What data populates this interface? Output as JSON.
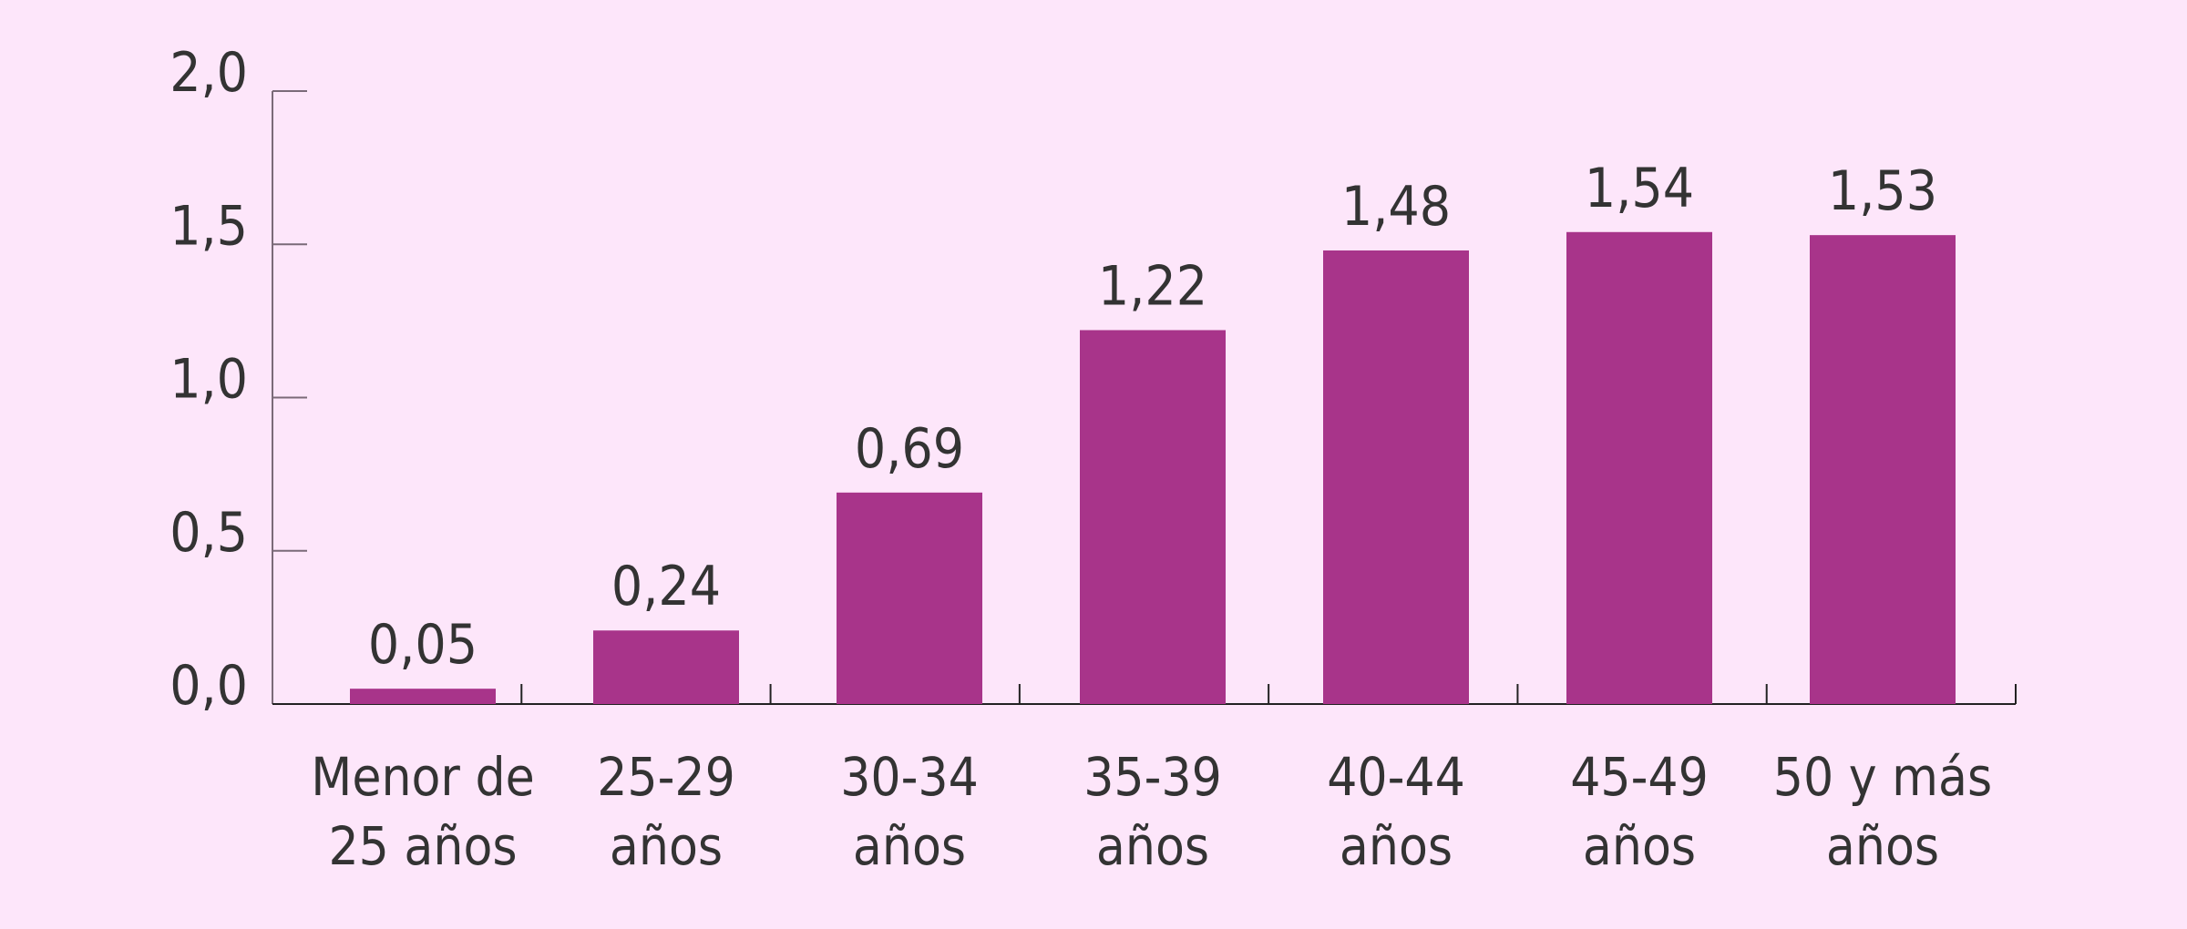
{
  "chart_data": {
    "type": "bar",
    "categories": [
      [
        "Menor de",
        "25 años"
      ],
      [
        "25-29",
        "años"
      ],
      [
        "30-34",
        "años"
      ],
      [
        "35-39",
        "años"
      ],
      [
        "40-44",
        "años"
      ],
      [
        "45-49",
        "años"
      ],
      [
        "50 y más",
        "años"
      ]
    ],
    "values": [
      0.05,
      0.24,
      0.69,
      1.22,
      1.48,
      1.54,
      1.53
    ],
    "value_labels": [
      "0,05",
      "0,24",
      "0,69",
      "1,22",
      "1,48",
      "1,54",
      "1,53"
    ],
    "title": "",
    "xlabel": "",
    "ylabel": "",
    "ylim": [
      0,
      2.0
    ],
    "yticks": [
      0,
      0.5,
      1.0,
      1.5,
      2.0
    ],
    "ytick_labels": [
      "0,0",
      "0,5",
      "1,0",
      "1,5",
      "2,0"
    ],
    "grid": false,
    "legend": "none",
    "colors": {
      "bar": "#a8348a",
      "background": "#fde6fa",
      "text": "#333333",
      "axis": "#7a6a78"
    }
  }
}
